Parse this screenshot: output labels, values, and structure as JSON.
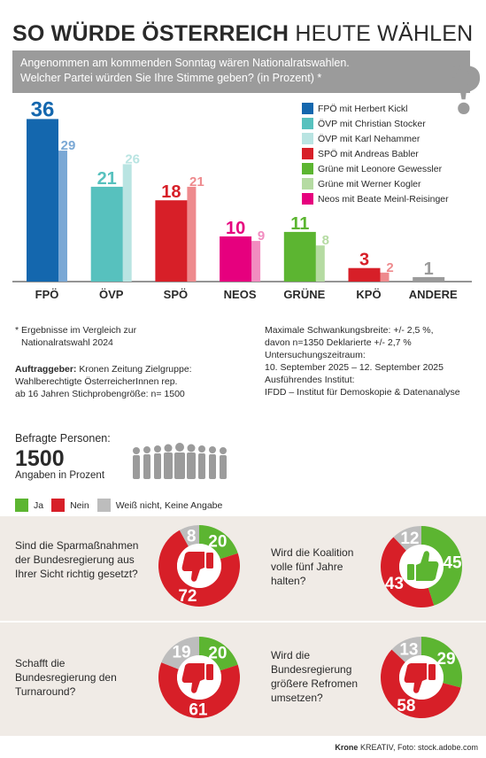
{
  "header": {
    "title_bold": "SO WÜRDE ÖSTERREICH",
    "title_light": "HEUTE WÄHLEN",
    "question_line1": "Angenommen am kommenden Sonntag wären Nationalratswahlen.",
    "question_line2": "Welcher Partei würden Sie Ihre Stimme geben? (in Prozent) *",
    "question_mark": "?"
  },
  "chart_data": [
    {
      "type": "bar",
      "categories": [
        "FPÖ",
        "ÖVP",
        "SPÖ",
        "NEOS",
        "GRÜNE",
        "KPÖ",
        "ANDERE"
      ],
      "series": [
        {
          "values": [
            36,
            21,
            18,
            10,
            11,
            3,
            1
          ]
        },
        {
          "values": [
            29,
            26,
            21,
            9,
            8,
            2,
            null
          ]
        }
      ],
      "value_labels": {
        "current": [
          "36",
          "21",
          "18",
          "10",
          "11",
          "3",
          "1"
        ],
        "previous": [
          "29",
          "26",
          "21",
          "9",
          "8",
          "2",
          ""
        ]
      },
      "colors_current": [
        "#1467ae",
        "#57c1be",
        "#d71f28",
        "#e6007e",
        "#5cb531",
        "#d71f28",
        "#9b9b9b"
      ],
      "colors_previous": [
        "#7aa8d5",
        "#b9e4e2",
        "#ee8a8d",
        "#f28cc0",
        "#b5dba2",
        "#ee8a8d",
        "#9b9b9b"
      ],
      "ylim": [
        0,
        40
      ],
      "legend": [
        {
          "label": "FPÖ mit Herbert Kickl",
          "color": "#1467ae"
        },
        {
          "label": "ÖVP mit Christian Stocker",
          "color": "#57c1be"
        },
        {
          "label": "ÖVP mit Karl Nehammer",
          "color": "#b9e4e2"
        },
        {
          "label": "SPÖ mit Andreas Babler",
          "color": "#d71f28"
        },
        {
          "label": "Grüne mit Leonore Gewessler",
          "color": "#5cb531"
        },
        {
          "label": "Grüne mit  Werner Kogler",
          "color": "#b5dba2"
        },
        {
          "label": "Neos mit Beate Meinl-Reisinger",
          "color": "#e6007e"
        }
      ]
    },
    {
      "type": "pie",
      "question": "Sind die Sparmaßnahmen der Bundesregierung aus Ihrer Sicht richtig gesetzt?",
      "values": [
        20,
        72,
        8
      ],
      "labels": [
        "20",
        "72",
        "8"
      ],
      "categories": [
        "Ja",
        "Nein",
        "Weiß nicht, Keine Angabe"
      ],
      "symbol": "thumbs-down"
    },
    {
      "type": "pie",
      "question": "Wird die Koalition volle fünf Jahre halten?",
      "values": [
        45,
        43,
        12
      ],
      "labels": [
        "45",
        "43",
        "12"
      ],
      "categories": [
        "Ja",
        "Nein",
        "Weiß nicht, Keine Angabe"
      ],
      "symbol": "thumbs-up"
    },
    {
      "type": "pie",
      "question": "Schafft die Bundesregierung den Turnaround?",
      "values": [
        20,
        61,
        19
      ],
      "labels": [
        "20",
        "61",
        "19"
      ],
      "categories": [
        "Ja",
        "Nein",
        "Weiß nicht, Keine Angabe"
      ],
      "symbol": "thumbs-down"
    },
    {
      "type": "pie",
      "question": "Wird die Bundesregierung größere Refromen umsetzen?",
      "values": [
        29,
        58,
        13
      ],
      "labels": [
        "29",
        "58",
        "13"
      ],
      "categories": [
        "Ja",
        "Nein",
        "Weiß nicht, Keine Angabe"
      ],
      "symbol": "thumbs-down"
    }
  ],
  "notes": {
    "comparison_1": "* Ergebnisse im Vergleich zur",
    "comparison_2": "Nationalratswahl 2024",
    "client_label": "Auftraggeber:",
    "client_value": " Kronen Zeitung Zielgruppe:",
    "target_2": "Wahlberechtigte ÖsterreicherInnen rep.",
    "target_3": "ab 16 Jahren Stichprobengröße: n= 1500",
    "margin_1": "Maximale Schwankungsbreite: +/- 2,5 %,",
    "margin_2": "davon n=1350 Deklarierte +/- 2,7 %",
    "period_label": "Untersuchungszeitraum:",
    "period_value": "10. September 2025 – 12. September 2025",
    "institute_label": "Ausführendes Institut:",
    "institute_value": "IFDD – Institut für Demoskopie & Datenanalyse"
  },
  "respondents": {
    "label": "Befragte Personen:",
    "value": "1500",
    "unit": "Angaben in Prozent"
  },
  "response_legend": [
    {
      "label": "Ja",
      "color": "#5cb531"
    },
    {
      "label": "Nein",
      "color": "#d71f28"
    },
    {
      "label": "Weiß nicht, Keine Angabe",
      "color": "#bdbdbd"
    }
  ],
  "credits": {
    "brand": "Krone",
    "rest": " KREATIV, Foto: stock.adobe.com"
  }
}
